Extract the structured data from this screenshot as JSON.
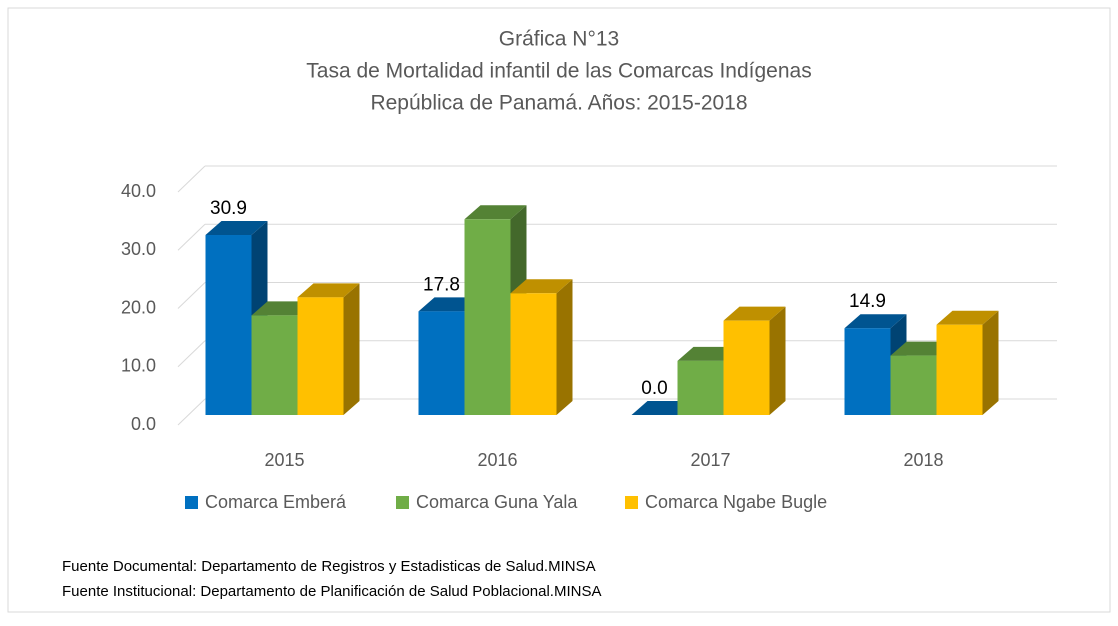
{
  "chart_data": {
    "type": "bar3d",
    "title": [
      "Gráfica N°13",
      "Tasa de Mortalidad infantil de las Comarcas Indígenas",
      "República de Panamá.  Años: 2015-2018"
    ],
    "categories": [
      "2015",
      "2016",
      "2017",
      "2018"
    ],
    "series": [
      {
        "name": "Comarca Emberá",
        "color": "#0070c0",
        "values": [
          30.9,
          17.8,
          0.0,
          14.9
        ],
        "value_labels": [
          "30.9",
          "17.8",
          "0.0",
          "14.9"
        ]
      },
      {
        "name": "Comarca Guna Yala",
        "color": "#70ad47",
        "values": [
          17.1,
          33.6,
          9.3,
          10.2
        ]
      },
      {
        "name": "Comarca Ngabe Bugle",
        "color": "#ffc000",
        "values": [
          20.2,
          20.9,
          16.2,
          15.5
        ]
      }
    ],
    "ylim": [
      0,
      40
    ],
    "yticks": [
      {
        "value": 0,
        "label": "0.0"
      },
      {
        "value": 10,
        "label": "10.0"
      },
      {
        "value": 20,
        "label": "20.0"
      },
      {
        "value": 30,
        "label": "30.0"
      },
      {
        "value": 40,
        "label": "40.0"
      }
    ],
    "grid": true,
    "legend": "bottom",
    "sources": [
      "Fuente Documental: Departamento de Registros y Estadisticas de Salud.MINSA",
      "Fuente Institucional: Departamento de Planificación de Salud Poblacional.MINSA"
    ]
  }
}
